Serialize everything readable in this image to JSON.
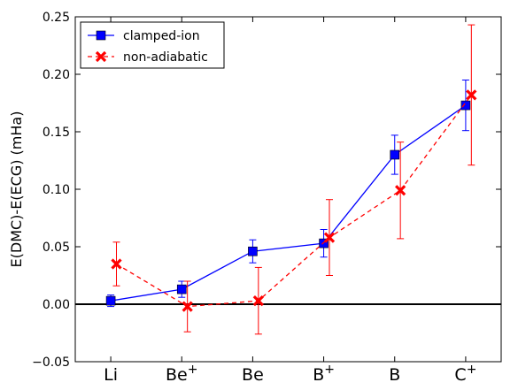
{
  "chart_data": {
    "type": "line",
    "title": "",
    "xlabel": "",
    "ylabel": "E(DMC)-E(ECG) (mHa)",
    "categories": [
      "Li",
      "Be",
      "Be",
      "B",
      "B",
      "C"
    ],
    "category_superscripts": [
      "",
      "+",
      "",
      "+",
      "",
      "+"
    ],
    "ylim": [
      -0.05,
      0.25
    ],
    "yticks": [
      -0.05,
      0.0,
      0.05,
      0.1,
      0.15,
      0.2,
      0.25
    ],
    "ytick_labels": [
      "−0.05",
      "0.00",
      "0.05",
      "0.10",
      "0.15",
      "0.20",
      "0.25"
    ],
    "reference_line": 0.0,
    "grid": false,
    "legend_position": "top-left",
    "series": [
      {
        "name": "clamped-ion",
        "color": "#0000ff",
        "line_style": "solid",
        "marker": "square",
        "x_offset": 0.0,
        "values": [
          0.003,
          0.013,
          0.046,
          0.053,
          0.13,
          0.173
        ],
        "errors": [
          0.005,
          0.007,
          0.01,
          0.012,
          0.017,
          0.022
        ]
      },
      {
        "name": "non-adiabatic",
        "color": "#ff0000",
        "line_style": "dashed",
        "marker": "x",
        "x_offset": 0.08,
        "values": [
          0.035,
          -0.002,
          0.003,
          0.058,
          0.099,
          0.182
        ],
        "errors": [
          0.019,
          0.022,
          0.029,
          0.033,
          0.042,
          0.061
        ]
      }
    ]
  }
}
